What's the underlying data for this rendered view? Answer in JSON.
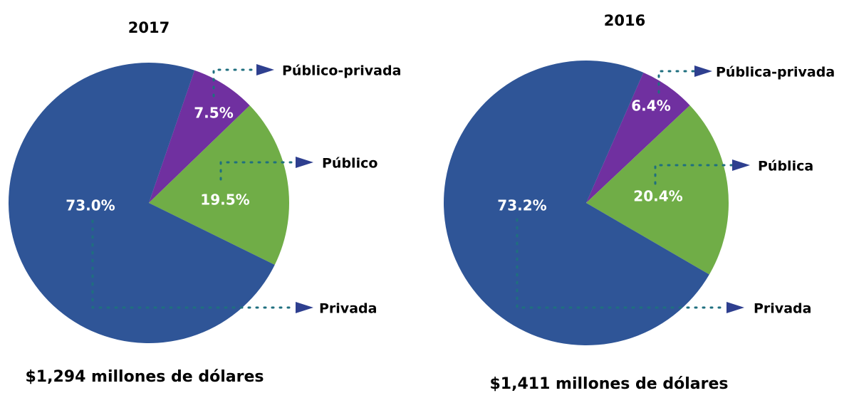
{
  "chart_data": [
    {
      "type": "pie",
      "title": "2017",
      "subtitle": "$1,294 millones de dólares",
      "categories": [
        "Público-privada",
        "Público",
        "Privada"
      ],
      "values": [
        7.5,
        19.5,
        73.0
      ],
      "value_labels": [
        "7.5%",
        "19.5%",
        "73.0%"
      ],
      "colors": [
        "#7030a0",
        "#70ad47",
        "#2f5597"
      ]
    },
    {
      "type": "pie",
      "title": "2016",
      "subtitle": "$1,411 millones de dólares",
      "categories": [
        "Pública-privada",
        "Pública",
        "Privada"
      ],
      "values": [
        6.4,
        20.4,
        73.2
      ],
      "value_labels": [
        "6.4%",
        "20.4%",
        "73.2%"
      ],
      "colors": [
        "#7030a0",
        "#70ad47",
        "#2f5597"
      ]
    }
  ]
}
